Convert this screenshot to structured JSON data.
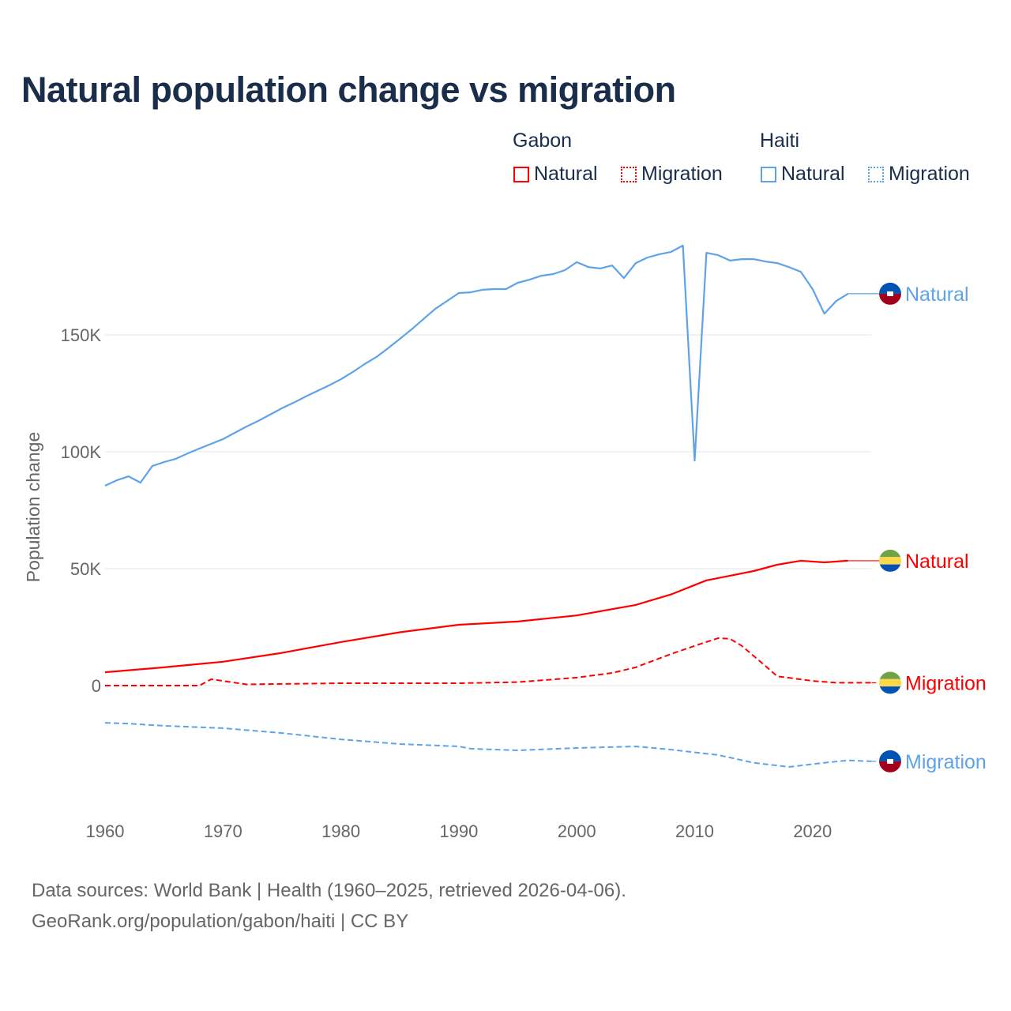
{
  "title": "Natural population change vs migration",
  "legend": {
    "groups": [
      {
        "name": "Gabon",
        "items": [
          {
            "label": "Natural",
            "style": "solid"
          },
          {
            "label": "Migration",
            "style": "dotted"
          }
        ],
        "color": "#ff0000"
      },
      {
        "name": "Haiti",
        "items": [
          {
            "label": "Natural",
            "style": "solid"
          },
          {
            "label": "Migration",
            "style": "dotted"
          }
        ],
        "color": "#5ea3e8"
      }
    ]
  },
  "footer": {
    "line1": "Data sources: World Bank | Health (1960–2025, retrieved 2026-04-06).",
    "line2": "GeoRank.org/population/gabon/haiti | CC BY"
  },
  "chart_data": {
    "type": "line",
    "title": "Natural population change vs migration",
    "xlabel": "",
    "ylabel": "Population change",
    "xlim": [
      1960,
      2025
    ],
    "ylim": [
      -50000,
      200000
    ],
    "x_ticks": [
      {
        "v": 1960,
        "label": "1960"
      },
      {
        "v": 1970,
        "label": "1970"
      },
      {
        "v": 1980,
        "label": "1980"
      },
      {
        "v": 1990,
        "label": "1990"
      },
      {
        "v": 2000,
        "label": "2000"
      },
      {
        "v": 2010,
        "label": "2010"
      },
      {
        "v": 2020,
        "label": "2020"
      }
    ],
    "y_ticks": [
      {
        "v": 0,
        "label": "0"
      },
      {
        "v": 50000,
        "label": "50K"
      },
      {
        "v": 100000,
        "label": "100K"
      },
      {
        "v": 150000,
        "label": "150K"
      }
    ],
    "grid": true,
    "series": [
      {
        "name": "Haiti Natural",
        "end_label": "Natural",
        "country": "Haiti",
        "color": "#5ea3e8",
        "dash": "solid",
        "x": [
          1960,
          1961,
          1962,
          1963,
          1964,
          1965,
          1966,
          1967,
          1968,
          1969,
          1970,
          1971,
          1972,
          1973,
          1974,
          1975,
          1976,
          1977,
          1978,
          1979,
          1980,
          1981,
          1982,
          1983,
          1984,
          1985,
          1986,
          1987,
          1988,
          1989,
          1990,
          1991,
          1992,
          1993,
          1994,
          1995,
          1996,
          1997,
          1998,
          1999,
          2000,
          2001,
          2002,
          2003,
          2004,
          2005,
          2006,
          2007,
          2008,
          2009,
          2010,
          2011,
          2012,
          2013,
          2014,
          2015,
          2016,
          2017,
          2018,
          2019,
          2020,
          2021,
          2022,
          2023
        ],
        "y": [
          85500,
          87800,
          89500,
          86800,
          93900,
          95600,
          97000,
          99300,
          101400,
          103400,
          105400,
          108100,
          110800,
          113200,
          115900,
          118600,
          121000,
          123600,
          126000,
          128400,
          131000,
          134100,
          137500,
          140500,
          144300,
          148300,
          152400,
          156800,
          161100,
          164500,
          167900,
          168200,
          169300,
          169600,
          169600,
          172300,
          173600,
          175300,
          176000,
          177700,
          181100,
          179000,
          178400,
          179700,
          174300,
          180700,
          183100,
          184500,
          185500,
          188200,
          96300,
          185100,
          184100,
          181800,
          182400,
          182400,
          181400,
          180700,
          179000,
          177000,
          169600,
          159100,
          164500,
          167600
        ]
      },
      {
        "name": "Gabon Natural",
        "end_label": "Natural",
        "country": "Gabon",
        "color": "#ff0000",
        "dash": "solid",
        "x": [
          1960,
          1965,
          1970,
          1975,
          1980,
          1985,
          1990,
          1995,
          2000,
          2005,
          2008,
          2010,
          2011,
          2013,
          2015,
          2017,
          2019,
          2021,
          2023
        ],
        "y": [
          5700,
          7800,
          10200,
          14000,
          18600,
          22800,
          26000,
          27400,
          30000,
          34500,
          39000,
          43000,
          45000,
          47000,
          49000,
          51700,
          53400,
          52700,
          53400
        ]
      },
      {
        "name": "Gabon Migration",
        "end_label": "Migration",
        "country": "Gabon",
        "color": "#ff0000",
        "dash": "dashed",
        "x": [
          1960,
          1968,
          1969,
          1970,
          1972,
          1975,
          1980,
          1990,
          1995,
          2000,
          2003,
          2005,
          2008,
          2010,
          2012,
          2013,
          2014,
          2016,
          2017,
          2020,
          2022,
          2025
        ],
        "y": [
          0,
          0,
          2700,
          2000,
          500,
          700,
          1000,
          1000,
          1500,
          3400,
          5400,
          7800,
          13500,
          17000,
          20300,
          20000,
          17000,
          8400,
          4000,
          2000,
          1200,
          1200
        ]
      },
      {
        "name": "Haiti Migration",
        "end_label": "Migration",
        "country": "Haiti",
        "color": "#5ea3e8",
        "dash": "dashed",
        "x": [
          1960,
          1962,
          1965,
          1970,
          1975,
          1980,
          1985,
          1990,
          1991,
          1995,
          2000,
          2005,
          2008,
          2012,
          2015,
          2018,
          2021,
          2023,
          2025
        ],
        "y": [
          -15900,
          -16300,
          -17200,
          -18200,
          -20300,
          -23000,
          -25000,
          -26000,
          -27000,
          -27700,
          -26700,
          -26000,
          -27400,
          -29700,
          -33000,
          -34800,
          -33000,
          -32000,
          -32400
        ]
      }
    ]
  }
}
